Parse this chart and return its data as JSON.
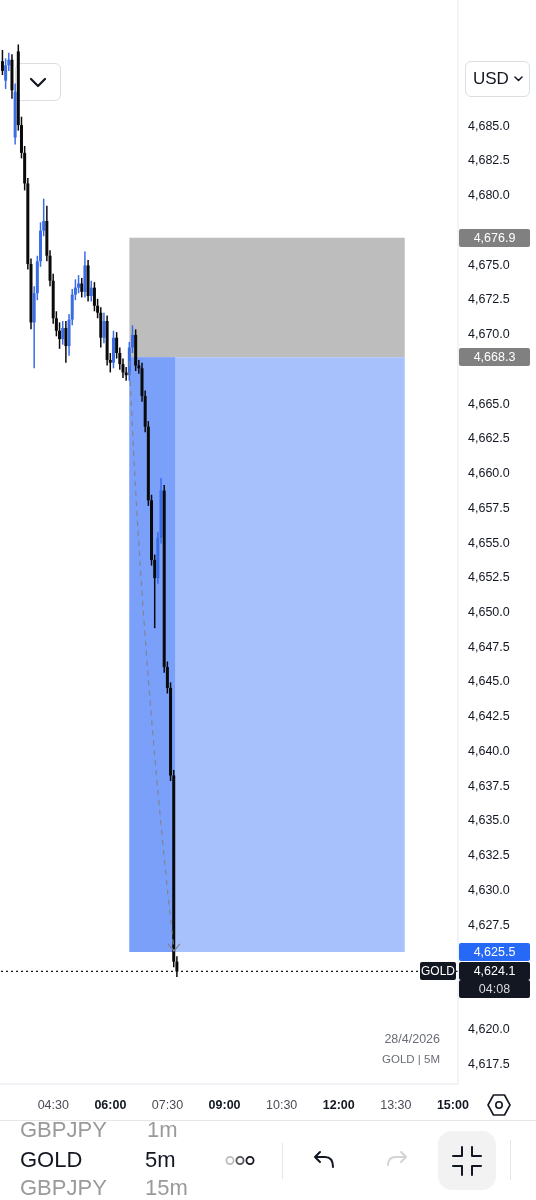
{
  "chart_data": {
    "type": "candlestick",
    "x": [
      "2026-04-28T03:10",
      "2026-04-28T03:15",
      "2026-04-28T03:20",
      "2026-04-28T03:25",
      "2026-04-28T03:30",
      "2026-04-28T03:35",
      "2026-04-28T03:40",
      "2026-04-28T03:45",
      "2026-04-28T03:50",
      "2026-04-28T03:55",
      "2026-04-28T04:00",
      "2026-04-28T04:05",
      "2026-04-28T04:10",
      "2026-04-28T04:15",
      "2026-04-28T04:20",
      "2026-04-28T04:25",
      "2026-04-28T04:30",
      "2026-04-28T04:35",
      "2026-04-28T04:40",
      "2026-04-28T04:45",
      "2026-04-28T04:50",
      "2026-04-28T04:55",
      "2026-04-28T05:00",
      "2026-04-28T05:05",
      "2026-04-28T05:10",
      "2026-04-28T05:15",
      "2026-04-28T05:20",
      "2026-04-28T05:25",
      "2026-04-28T05:30",
      "2026-04-28T05:35",
      "2026-04-28T05:40",
      "2026-04-28T05:45",
      "2026-04-28T05:50",
      "2026-04-28T05:55",
      "2026-04-28T06:00",
      "2026-04-28T06:05",
      "2026-04-28T06:10",
      "2026-04-28T06:15",
      "2026-04-28T06:20",
      "2026-04-28T06:25",
      "2026-04-28T06:30",
      "2026-04-28T06:35",
      "2026-04-28T06:40",
      "2026-04-28T06:45",
      "2026-04-28T06:50",
      "2026-04-28T06:55",
      "2026-04-28T07:00",
      "2026-04-28T07:05",
      "2026-04-28T07:10",
      "2026-04-28T07:15",
      "2026-04-28T07:20",
      "2026-04-28T07:25",
      "2026-04-28T07:30",
      "2026-04-28T07:35",
      "2026-04-28T07:40",
      "2026-04-28T07:45"
    ],
    "ohlc": [
      [
        4689.6,
        4690.4,
        4688.6,
        4688.9
      ],
      [
        4688.2,
        4689.8,
        4687.6,
        4689.3
      ],
      [
        4689.3,
        4690.2,
        4688.9,
        4689.7
      ],
      [
        4689.7,
        4690.1,
        4686.9,
        4687.5
      ],
      [
        4684.1,
        4688.0,
        4683.6,
        4687.4
      ],
      [
        4690.3,
        4690.8,
        4684.6,
        4685.0
      ],
      [
        4685.0,
        4685.6,
        4682.6,
        4683.0
      ],
      [
        4683.0,
        4683.5,
        4680.3,
        4680.8
      ],
      [
        4680.8,
        4681.2,
        4674.6,
        4675.0
      ],
      [
        4675.0,
        4675.4,
        4670.3,
        4670.8
      ],
      [
        4670.8,
        4673.4,
        4667.5,
        4672.9
      ],
      [
        4672.9,
        4675.6,
        4672.4,
        4675.2
      ],
      [
        4675.2,
        4678.0,
        4674.8,
        4677.4
      ],
      [
        4677.4,
        4679.7,
        4677.0,
        4678.1
      ],
      [
        4678.1,
        4679.2,
        4675.2,
        4675.6
      ],
      [
        4675.6,
        4676.0,
        4673.4,
        4673.8
      ],
      [
        4673.8,
        4674.3,
        4670.7,
        4671.1
      ],
      [
        4671.1,
        4671.6,
        4669.8,
        4670.2
      ],
      [
        4670.2,
        4670.8,
        4668.9,
        4669.6
      ],
      [
        4669.6,
        4670.9,
        4669.2,
        4670.4
      ],
      [
        4670.4,
        4670.9,
        4667.9,
        4669.1
      ],
      [
        4669.1,
        4671.4,
        4668.4,
        4671.0
      ],
      [
        4671.0,
        4673.2,
        4670.6,
        4672.8
      ],
      [
        4672.8,
        4673.9,
        4672.4,
        4673.3
      ],
      [
        4673.3,
        4674.2,
        4672.9,
        4673.6
      ],
      [
        4673.6,
        4674.0,
        4672.6,
        4673.0
      ],
      [
        4673.0,
        4675.9,
        4672.6,
        4674.9
      ],
      [
        4674.9,
        4675.3,
        4672.3,
        4672.7
      ],
      [
        4672.7,
        4673.8,
        4672.3,
        4673.3
      ],
      [
        4673.3,
        4673.7,
        4671.6,
        4672.0
      ],
      [
        4672.0,
        4672.5,
        4671.1,
        4671.5
      ],
      [
        4671.5,
        4671.9,
        4669.0,
        4669.7
      ],
      [
        4669.7,
        4671.5,
        4669.3,
        4670.9
      ],
      [
        4670.9,
        4671.3,
        4667.7,
        4668.1
      ],
      [
        4668.1,
        4668.6,
        4667.2,
        4667.9
      ],
      [
        4667.9,
        4670.2,
        4667.5,
        4669.7
      ],
      [
        4669.7,
        4670.1,
        4668.2,
        4668.6
      ],
      [
        4668.6,
        4669.0,
        4667.4,
        4667.8
      ],
      [
        4667.8,
        4668.2,
        4666.8,
        4667.2
      ],
      [
        4667.2,
        4667.6,
        4666.6,
        4667.0
      ],
      [
        4667.0,
        4669.4,
        4666.6,
        4669.0
      ],
      [
        4669.0,
        4670.6,
        4668.6,
        4669.9
      ],
      [
        4669.9,
        4670.3,
        4667.3,
        4667.7
      ],
      [
        4667.7,
        4668.1,
        4667.1,
        4667.5
      ],
      [
        4667.5,
        4667.9,
        4665.1,
        4665.5
      ],
      [
        4665.5,
        4665.9,
        4662.9,
        4663.3
      ],
      [
        4663.3,
        4663.7,
        4657.6,
        4658.0
      ],
      [
        4658.0,
        4658.4,
        4653.3,
        4653.7
      ],
      [
        4653.7,
        4654.1,
        4648.8,
        4652.4
      ],
      [
        4652.4,
        4655.7,
        4652.0,
        4655.3
      ],
      [
        4655.3,
        4659.6,
        4654.9,
        4658.7
      ],
      [
        4658.7,
        4659.1,
        4645.6,
        4646.0
      ],
      [
        4646.0,
        4646.4,
        4644.1,
        4644.5
      ],
      [
        4644.5,
        4644.9,
        4637.8,
        4638.2
      ],
      [
        4638.2,
        4638.6,
        4624.4,
        4624.8
      ],
      [
        4624.8,
        4625.2,
        4623.7,
        4624.1
      ]
    ],
    "colors": [
      "#0a0a0a",
      "#3a6ce6",
      "#3a6ce6",
      "#0a0a0a",
      "#3a6ce6",
      "#0a0a0a",
      "#0a0a0a",
      "#0a0a0a",
      "#0a0a0a",
      "#0a0a0a",
      "#3a6ce6",
      "#3a6ce6",
      "#3a6ce6",
      "#3a6ce6",
      "#0a0a0a",
      "#0a0a0a",
      "#0a0a0a",
      "#0a0a0a",
      "#0a0a0a",
      "#3a6ce6",
      "#0a0a0a",
      "#3a6ce6",
      "#3a6ce6",
      "#3a6ce6",
      "#3a6ce6",
      "#0a0a0a",
      "#3a6ce6",
      "#0a0a0a",
      "#3a6ce6",
      "#0a0a0a",
      "#0a0a0a",
      "#0a0a0a",
      "#3a6ce6",
      "#0a0a0a",
      "#0a0a0a",
      "#3a6ce6",
      "#0a0a0a",
      "#0a0a0a",
      "#0a0a0a",
      "#0a0a0a",
      "#3a6ce6",
      "#3a6ce6",
      "#0a0a0a",
      "#0a0a0a",
      "#0a0a0a",
      "#0a0a0a",
      "#0a0a0a",
      "#0a0a0a",
      "#0a0a0a",
      "#3a6ce6",
      "#3a6ce6",
      "#0a0a0a",
      "#0a0a0a",
      "#0a0a0a",
      "#0a0a0a",
      "#0a0a0a"
    ],
    "xlim": [
      "2026-04-28T03:06",
      "2026-04-28T15:08"
    ],
    "xticks": [
      {
        "value": "2026-04-28T04:30",
        "label": "04:30"
      },
      {
        "value": "2026-04-28T06:00",
        "label": "06:00"
      },
      {
        "value": "2026-04-28T07:30",
        "label": "07:30"
      },
      {
        "value": "2026-04-28T09:00",
        "label": "09:00"
      },
      {
        "value": "2026-04-28T10:30",
        "label": "10:30"
      },
      {
        "value": "2026-04-28T12:00",
        "label": "12:00"
      },
      {
        "value": "2026-04-28T13:30",
        "label": "13:30"
      },
      {
        "value": "2026-04-28T15:00",
        "label": "15:00"
      }
    ],
    "ylim": [
      4616,
      4694
    ],
    "yticks": [
      {
        "value": 4617.5,
        "label": "4,617.5"
      },
      {
        "value": 4620,
        "label": "4,620.0"
      },
      {
        "value": 4627.5,
        "label": "4,627.5"
      },
      {
        "value": 4630,
        "label": "4,630.0"
      },
      {
        "value": 4632.5,
        "label": "4,632.5"
      },
      {
        "value": 4635,
        "label": "4,635.0"
      },
      {
        "value": 4637.5,
        "label": "4,637.5"
      },
      {
        "value": 4640,
        "label": "4,640.0"
      },
      {
        "value": 4642.5,
        "label": "4,642.5"
      },
      {
        "value": 4645,
        "label": "4,645.0"
      },
      {
        "value": 4647.5,
        "label": "4,647.5"
      },
      {
        "value": 4650,
        "label": "4,650.0"
      },
      {
        "value": 4652.5,
        "label": "4,652.5"
      },
      {
        "value": 4655,
        "label": "4,655.0"
      },
      {
        "value": 4657.5,
        "label": "4,657.5"
      },
      {
        "value": 4660,
        "label": "4,660.0"
      },
      {
        "value": 4662.5,
        "label": "4,662.5"
      },
      {
        "value": 4665,
        "label": "4,665.0"
      },
      {
        "value": 4670,
        "label": "4,670.0"
      },
      {
        "value": 4672.5,
        "label": "4,672.5"
      },
      {
        "value": 4675,
        "label": "4,675.0"
      },
      {
        "value": 4680,
        "label": "4,680.0"
      },
      {
        "value": 4682.5,
        "label": "4,682.5"
      },
      {
        "value": 4685,
        "label": "4,685.0"
      }
    ],
    "bands": [
      {
        "axis": "y",
        "from": 4668.3,
        "to": 4676.9,
        "color": "#bdbdbd"
      },
      {
        "axis": "y",
        "from": 4625.5,
        "to": 4668.3,
        "color": "#a6c1fc"
      },
      {
        "axis": "y",
        "from": 4625.5,
        "to": 4668.3,
        "color": "#7aa0fa"
      }
    ],
    "ref_lines": [
      {
        "axis": "y",
        "value": 4624.1,
        "label": "GOLD",
        "line_style": "dotted",
        "color": "#131722"
      }
    ],
    "annotations": [
      "28/4/2026",
      "GOLD | 5M",
      "4,676.9",
      "4,668.3",
      "4,625.5",
      "4,624.1",
      "04:08",
      "USD",
      "GBPJPY",
      "1m",
      "GOLD",
      "5m",
      "GBPJPY",
      "15m"
    ]
  }
}
